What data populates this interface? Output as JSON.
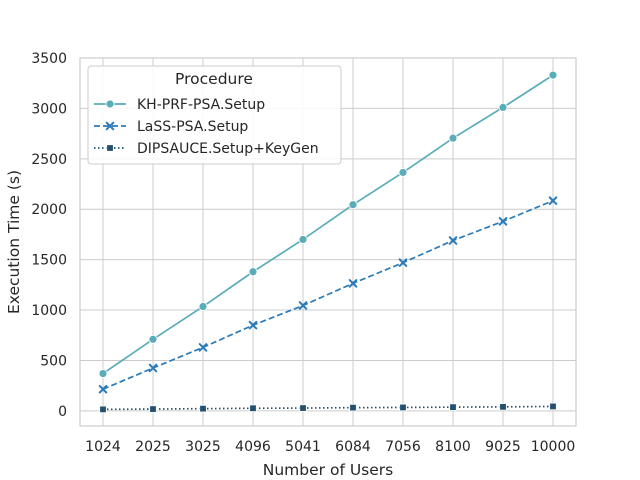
{
  "chart_data": {
    "type": "line",
    "xlabel": "Number of Users",
    "ylabel": "Execution Time (s)",
    "categories": [
      "1024",
      "2025",
      "3025",
      "4096",
      "5041",
      "6084",
      "7056",
      "8100",
      "9025",
      "10000"
    ],
    "x": [
      1024,
      2025,
      3025,
      4096,
      5041,
      6084,
      7056,
      8100,
      9025,
      10000
    ],
    "ylim": [
      -150,
      3500
    ],
    "yticks": [
      0,
      500,
      1000,
      1500,
      2000,
      2500,
      3000,
      3500
    ],
    "grid": true,
    "legend": {
      "title": "Procedure",
      "placement": "top-left"
    },
    "series": [
      {
        "name": "KH-PRF-PSA.Setup",
        "color": "#5aadb8",
        "marker": "circle",
        "linestyle": "solid",
        "values": [
          370,
          710,
          1035,
          1380,
          1700,
          2045,
          2365,
          2705,
          3010,
          3330
        ]
      },
      {
        "name": "LaSS-PSA.Setup",
        "color": "#2b7bb9",
        "marker": "x",
        "linestyle": "dashed",
        "values": [
          215,
          425,
          630,
          850,
          1045,
          1265,
          1470,
          1690,
          1880,
          2085
        ]
      },
      {
        "name": "DIPSAUCE.Setup+KeyGen",
        "color": "#22506e",
        "marker": "square",
        "linestyle": "dotted",
        "values": [
          15,
          18,
          22,
          26,
          28,
          32,
          34,
          37,
          40,
          44
        ]
      }
    ]
  }
}
